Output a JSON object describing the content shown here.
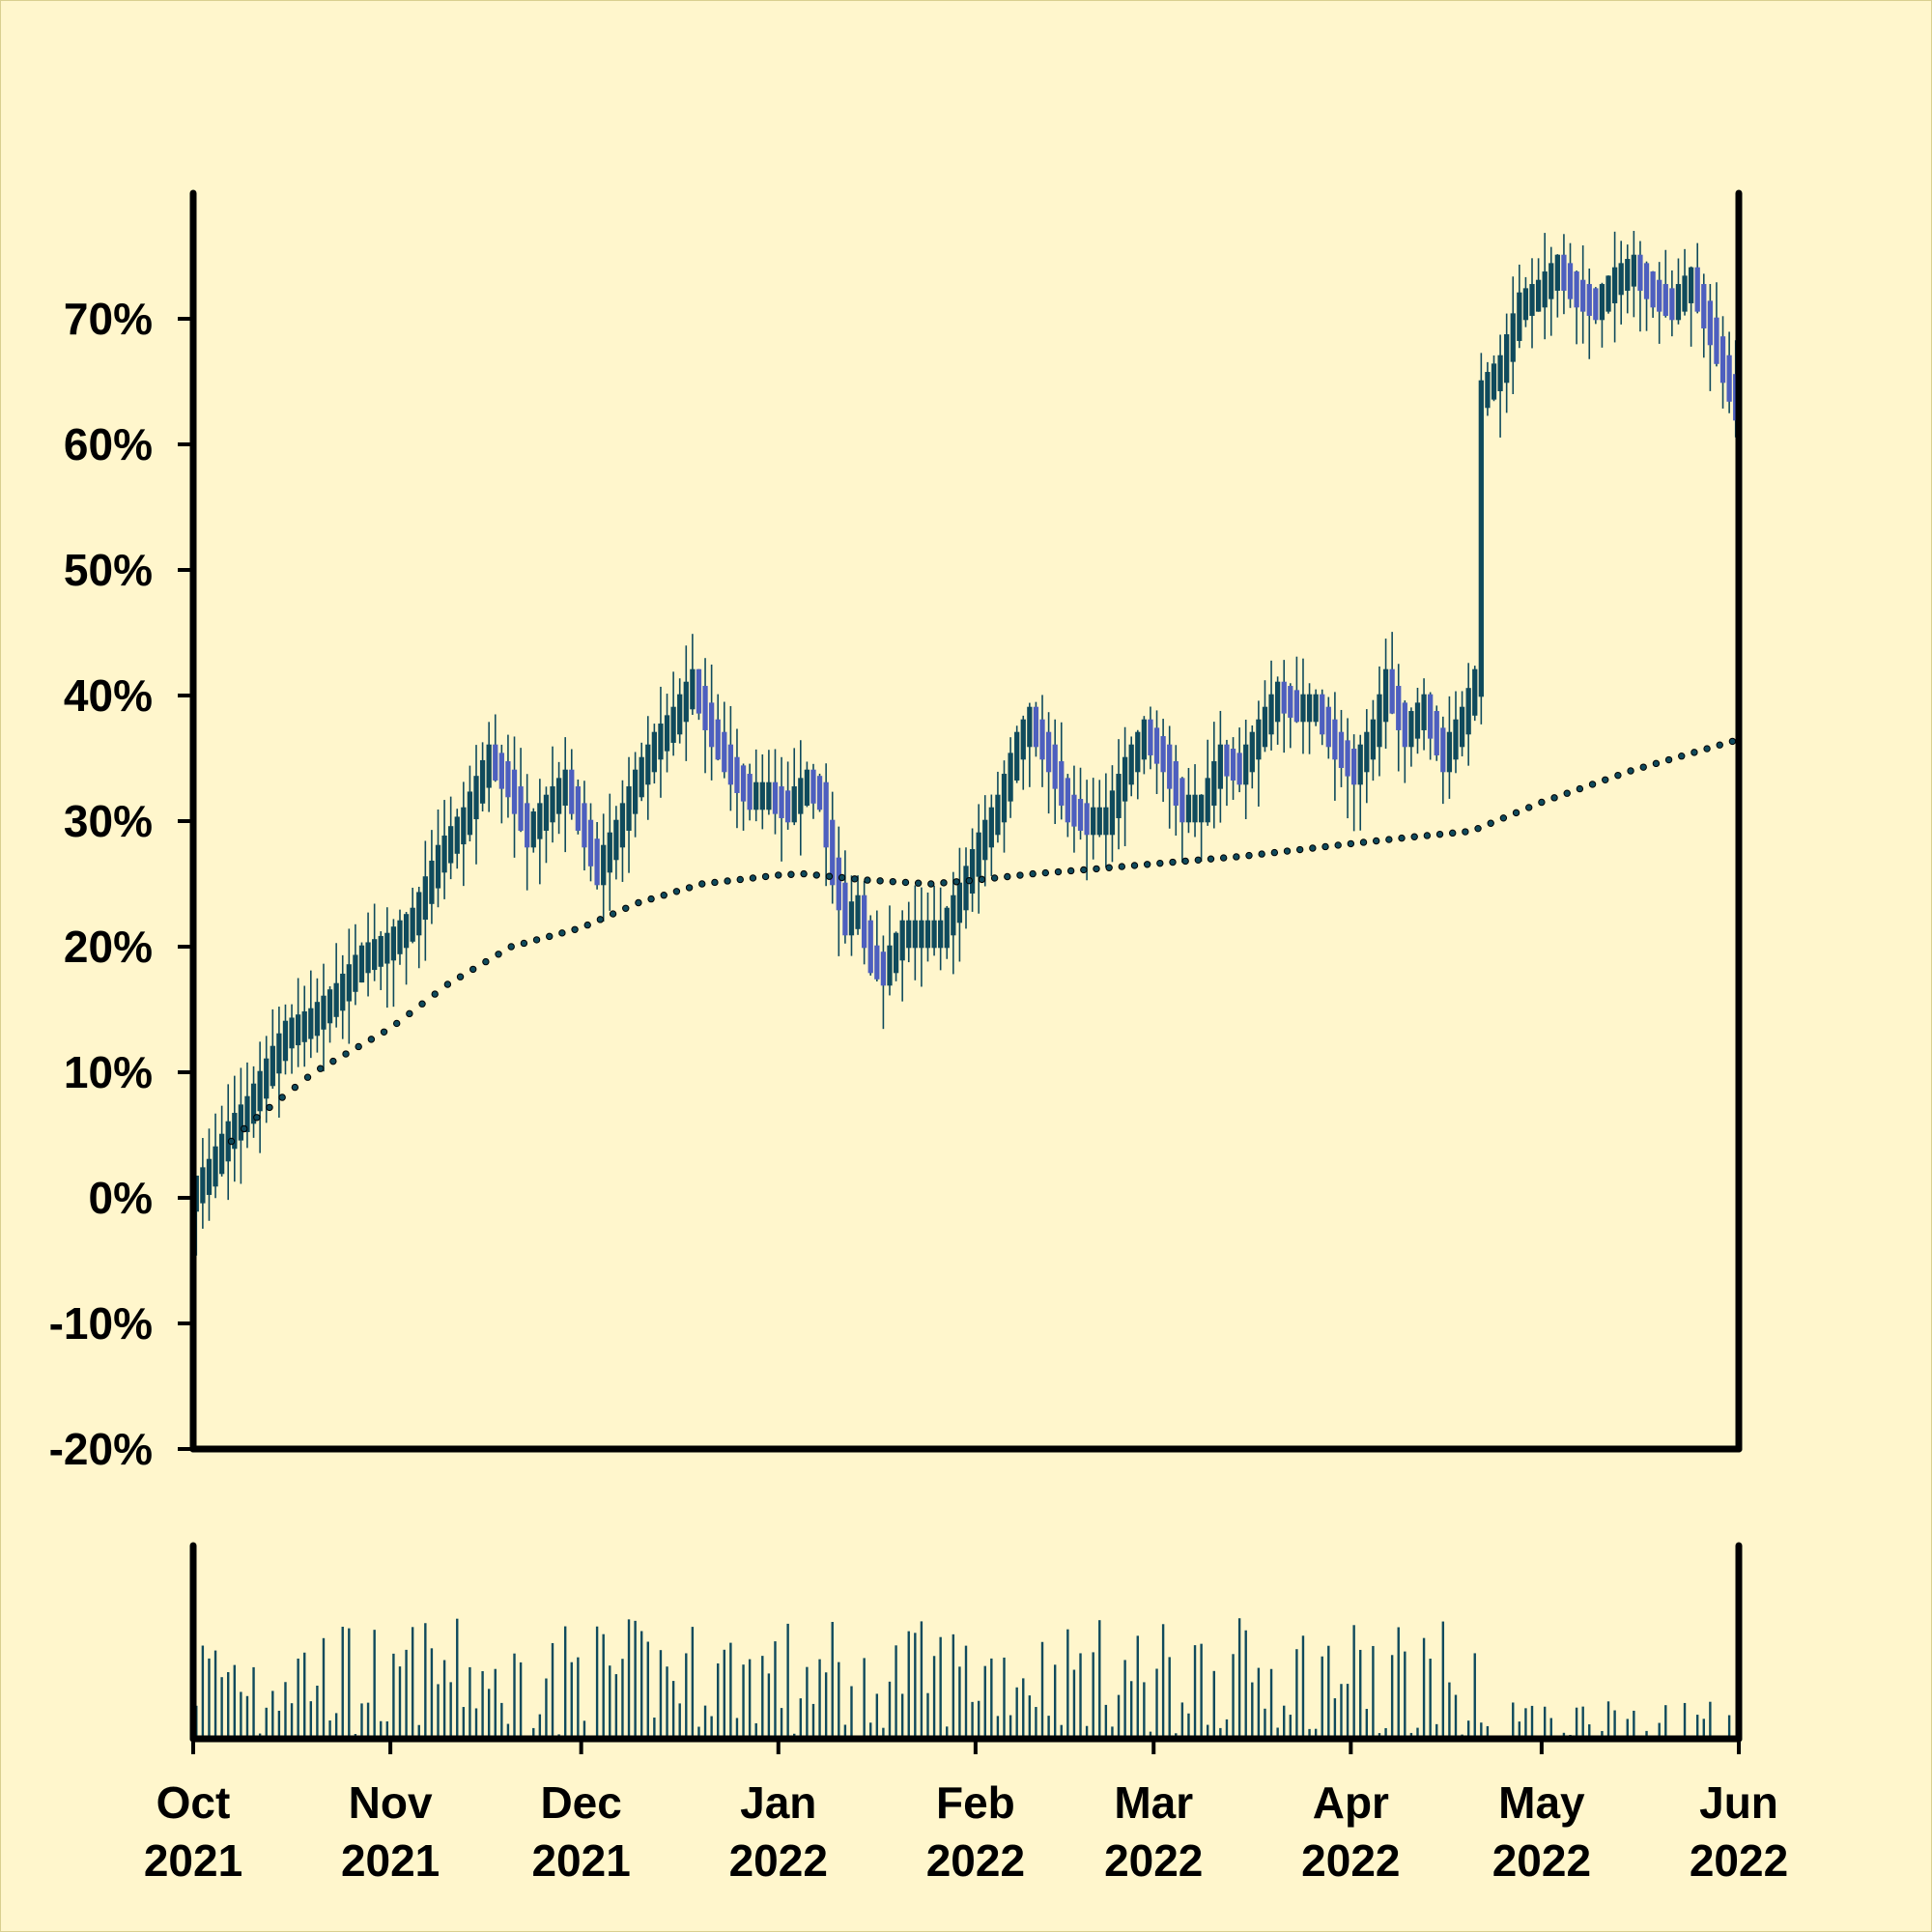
{
  "chart_data": {
    "type": "candlestick",
    "title": "",
    "xlabel": "",
    "ylabel": "",
    "ylim": [
      -20,
      80
    ],
    "yticks": [
      "-20%",
      "-10%",
      "0%",
      "10%",
      "20%",
      "30%",
      "40%",
      "50%",
      "60%",
      "70%"
    ],
    "ytick_values": [
      -20,
      -10,
      0,
      10,
      20,
      30,
      40,
      50,
      60,
      70
    ],
    "xlim": [
      "2021-10-01",
      "2022-06-01"
    ],
    "xticks": [
      {
        "date": "2021-10-01",
        "month": "Oct",
        "year": "2021"
      },
      {
        "date": "2021-11-01",
        "month": "Nov",
        "year": "2021"
      },
      {
        "date": "2021-12-01",
        "month": "Dec",
        "year": "2021"
      },
      {
        "date": "2022-01-01",
        "month": "Jan",
        "year": "2022"
      },
      {
        "date": "2022-02-01",
        "month": "Feb",
        "year": "2022"
      },
      {
        "date": "2022-03-01",
        "month": "Mar",
        "year": "2022"
      },
      {
        "date": "2022-04-01",
        "month": "Apr",
        "year": "2022"
      },
      {
        "date": "2022-05-01",
        "month": "May",
        "year": "2022"
      },
      {
        "date": "2022-06-01",
        "month": "Jun",
        "year": "2022"
      }
    ],
    "price_path": [
      [
        "2021-10-01",
        0
      ],
      [
        "2021-10-04",
        2
      ],
      [
        "2021-10-07",
        5
      ],
      [
        "2021-10-10",
        7
      ],
      [
        "2021-10-13",
        10
      ],
      [
        "2021-10-16",
        13
      ],
      [
        "2021-10-20",
        14
      ],
      [
        "2021-10-24",
        16
      ],
      [
        "2021-10-28",
        19
      ],
      [
        "2021-11-01",
        20
      ],
      [
        "2021-11-05",
        22
      ],
      [
        "2021-11-09",
        27
      ],
      [
        "2021-11-13",
        30
      ],
      [
        "2021-11-17",
        35
      ],
      [
        "2021-11-20",
        33
      ],
      [
        "2021-11-23",
        29
      ],
      [
        "2021-11-26",
        31
      ],
      [
        "2021-11-29",
        33
      ],
      [
        "2021-12-02",
        29
      ],
      [
        "2021-12-04",
        26
      ],
      [
        "2021-12-07",
        29
      ],
      [
        "2021-12-10",
        33
      ],
      [
        "2021-12-13",
        36
      ],
      [
        "2021-12-16",
        38
      ],
      [
        "2021-12-19",
        41
      ],
      [
        "2021-12-22",
        37
      ],
      [
        "2021-12-25",
        34
      ],
      [
        "2021-12-28",
        32
      ],
      [
        "2021-12-31",
        32
      ],
      [
        "2022-01-03",
        31
      ],
      [
        "2022-01-06",
        33
      ],
      [
        "2022-01-08",
        32
      ],
      [
        "2022-01-10",
        26
      ],
      [
        "2022-01-12",
        22
      ],
      [
        "2022-01-14",
        23
      ],
      [
        "2022-01-16",
        19
      ],
      [
        "2022-01-18",
        18
      ],
      [
        "2022-01-21",
        21
      ],
      [
        "2022-01-24",
        21
      ],
      [
        "2022-01-27",
        21
      ],
      [
        "2022-01-30",
        24
      ],
      [
        "2022-02-02",
        28
      ],
      [
        "2022-02-05",
        31
      ],
      [
        "2022-02-08",
        36
      ],
      [
        "2022-02-10",
        38
      ],
      [
        "2022-02-13",
        35
      ],
      [
        "2022-02-16",
        31
      ],
      [
        "2022-02-19",
        30
      ],
      [
        "2022-02-22",
        30
      ],
      [
        "2022-02-25",
        34
      ],
      [
        "2022-02-28",
        37
      ],
      [
        "2022-03-03",
        35
      ],
      [
        "2022-03-06",
        31
      ],
      [
        "2022-03-09",
        31
      ],
      [
        "2022-03-12",
        35
      ],
      [
        "2022-03-15",
        34
      ],
      [
        "2022-03-18",
        37
      ],
      [
        "2022-03-21",
        40
      ],
      [
        "2022-03-24",
        39
      ],
      [
        "2022-03-27",
        39
      ],
      [
        "2022-03-30",
        36
      ],
      [
        "2022-04-02",
        34
      ],
      [
        "2022-04-05",
        37
      ],
      [
        "2022-04-07",
        41
      ],
      [
        "2022-04-10",
        37
      ],
      [
        "2022-04-13",
        39
      ],
      [
        "2022-04-16",
        35
      ],
      [
        "2022-04-19",
        38
      ],
      [
        "2022-04-21",
        41
      ],
      [
        "2022-04-22",
        64
      ],
      [
        "2022-04-25",
        66
      ],
      [
        "2022-04-28",
        71
      ],
      [
        "2022-05-01",
        72
      ],
      [
        "2022-05-04",
        74
      ],
      [
        "2022-05-07",
        72
      ],
      [
        "2022-05-10",
        71
      ],
      [
        "2022-05-13",
        73
      ],
      [
        "2022-05-16",
        74
      ],
      [
        "2022-05-19",
        72
      ],
      [
        "2022-05-22",
        71
      ],
      [
        "2022-05-25",
        73
      ],
      [
        "2022-05-28",
        69
      ],
      [
        "2022-05-30",
        66
      ],
      [
        "2022-06-01",
        63
      ]
    ],
    "moving_average": [
      [
        "2021-10-01",
        1.5
      ],
      [
        "2021-10-10",
        6
      ],
      [
        "2021-10-20",
        10
      ],
      [
        "2021-11-01",
        13.5
      ],
      [
        "2021-11-10",
        17
      ],
      [
        "2021-11-20",
        20
      ],
      [
        "2021-12-01",
        21.5
      ],
      [
        "2021-12-10",
        23.5
      ],
      [
        "2021-12-20",
        25
      ],
      [
        "2022-01-01",
        25.7
      ],
      [
        "2022-01-05",
        25.8
      ],
      [
        "2022-01-15",
        25.3
      ],
      [
        "2022-01-25",
        25
      ],
      [
        "2022-02-01",
        25.3
      ],
      [
        "2022-02-10",
        25.8
      ],
      [
        "2022-02-20",
        26.2
      ],
      [
        "2022-03-01",
        26.6
      ],
      [
        "2022-03-15",
        27.2
      ],
      [
        "2022-04-01",
        28.2
      ],
      [
        "2022-04-10",
        28.7
      ],
      [
        "2022-04-20",
        29.2
      ],
      [
        "2022-05-01",
        31.5
      ],
      [
        "2022-05-15",
        34
      ],
      [
        "2022-06-01",
        36.5
      ]
    ],
    "colors": {
      "up": "#0f4a5c",
      "down": "#4d5fbf",
      "wick": "#0f4a5c",
      "ma": "#0f4a5c",
      "volume": "#0f4a5c",
      "axis": "#000000",
      "background": "#fff6cc"
    }
  }
}
